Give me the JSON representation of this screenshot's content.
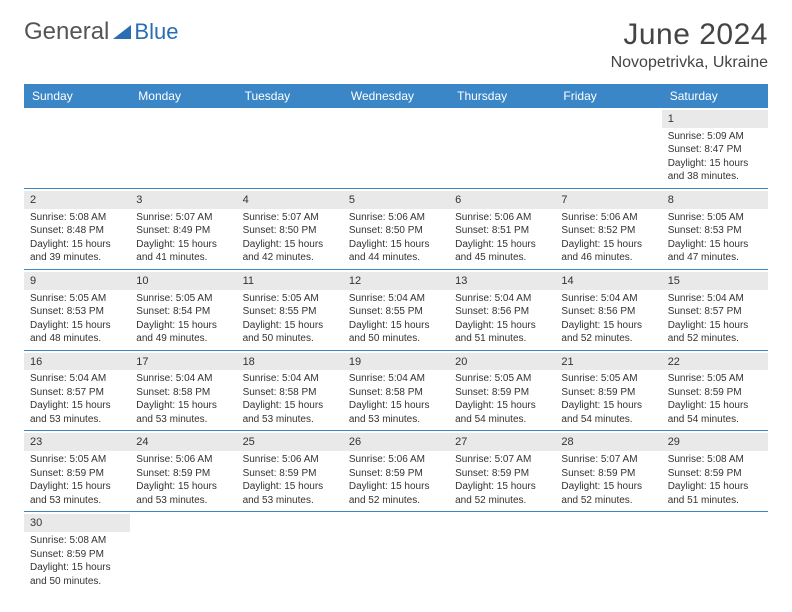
{
  "brand": {
    "general": "General",
    "blue": "Blue"
  },
  "title": "June 2024",
  "location": "Novopetrivka, Ukraine",
  "colors": {
    "header_bg": "#3b86c7",
    "header_fg": "#ffffff",
    "daynum_bg": "#e9e9e9",
    "border": "#3b86c7",
    "logo_blue": "#2a6db5",
    "text": "#333333",
    "bg": "#ffffff"
  },
  "daynames": [
    "Sunday",
    "Monday",
    "Tuesday",
    "Wednesday",
    "Thursday",
    "Friday",
    "Saturday"
  ],
  "weeks": [
    [
      null,
      null,
      null,
      null,
      null,
      null,
      {
        "n": "1",
        "sr": "Sunrise: 5:09 AM",
        "ss": "Sunset: 8:47 PM",
        "d1": "Daylight: 15 hours",
        "d2": "and 38 minutes."
      }
    ],
    [
      {
        "n": "2",
        "sr": "Sunrise: 5:08 AM",
        "ss": "Sunset: 8:48 PM",
        "d1": "Daylight: 15 hours",
        "d2": "and 39 minutes."
      },
      {
        "n": "3",
        "sr": "Sunrise: 5:07 AM",
        "ss": "Sunset: 8:49 PM",
        "d1": "Daylight: 15 hours",
        "d2": "and 41 minutes."
      },
      {
        "n": "4",
        "sr": "Sunrise: 5:07 AM",
        "ss": "Sunset: 8:50 PM",
        "d1": "Daylight: 15 hours",
        "d2": "and 42 minutes."
      },
      {
        "n": "5",
        "sr": "Sunrise: 5:06 AM",
        "ss": "Sunset: 8:50 PM",
        "d1": "Daylight: 15 hours",
        "d2": "and 44 minutes."
      },
      {
        "n": "6",
        "sr": "Sunrise: 5:06 AM",
        "ss": "Sunset: 8:51 PM",
        "d1": "Daylight: 15 hours",
        "d2": "and 45 minutes."
      },
      {
        "n": "7",
        "sr": "Sunrise: 5:06 AM",
        "ss": "Sunset: 8:52 PM",
        "d1": "Daylight: 15 hours",
        "d2": "and 46 minutes."
      },
      {
        "n": "8",
        "sr": "Sunrise: 5:05 AM",
        "ss": "Sunset: 8:53 PM",
        "d1": "Daylight: 15 hours",
        "d2": "and 47 minutes."
      }
    ],
    [
      {
        "n": "9",
        "sr": "Sunrise: 5:05 AM",
        "ss": "Sunset: 8:53 PM",
        "d1": "Daylight: 15 hours",
        "d2": "and 48 minutes."
      },
      {
        "n": "10",
        "sr": "Sunrise: 5:05 AM",
        "ss": "Sunset: 8:54 PM",
        "d1": "Daylight: 15 hours",
        "d2": "and 49 minutes."
      },
      {
        "n": "11",
        "sr": "Sunrise: 5:05 AM",
        "ss": "Sunset: 8:55 PM",
        "d1": "Daylight: 15 hours",
        "d2": "and 50 minutes."
      },
      {
        "n": "12",
        "sr": "Sunrise: 5:04 AM",
        "ss": "Sunset: 8:55 PM",
        "d1": "Daylight: 15 hours",
        "d2": "and 50 minutes."
      },
      {
        "n": "13",
        "sr": "Sunrise: 5:04 AM",
        "ss": "Sunset: 8:56 PM",
        "d1": "Daylight: 15 hours",
        "d2": "and 51 minutes."
      },
      {
        "n": "14",
        "sr": "Sunrise: 5:04 AM",
        "ss": "Sunset: 8:56 PM",
        "d1": "Daylight: 15 hours",
        "d2": "and 52 minutes."
      },
      {
        "n": "15",
        "sr": "Sunrise: 5:04 AM",
        "ss": "Sunset: 8:57 PM",
        "d1": "Daylight: 15 hours",
        "d2": "and 52 minutes."
      }
    ],
    [
      {
        "n": "16",
        "sr": "Sunrise: 5:04 AM",
        "ss": "Sunset: 8:57 PM",
        "d1": "Daylight: 15 hours",
        "d2": "and 53 minutes."
      },
      {
        "n": "17",
        "sr": "Sunrise: 5:04 AM",
        "ss": "Sunset: 8:58 PM",
        "d1": "Daylight: 15 hours",
        "d2": "and 53 minutes."
      },
      {
        "n": "18",
        "sr": "Sunrise: 5:04 AM",
        "ss": "Sunset: 8:58 PM",
        "d1": "Daylight: 15 hours",
        "d2": "and 53 minutes."
      },
      {
        "n": "19",
        "sr": "Sunrise: 5:04 AM",
        "ss": "Sunset: 8:58 PM",
        "d1": "Daylight: 15 hours",
        "d2": "and 53 minutes."
      },
      {
        "n": "20",
        "sr": "Sunrise: 5:05 AM",
        "ss": "Sunset: 8:59 PM",
        "d1": "Daylight: 15 hours",
        "d2": "and 54 minutes."
      },
      {
        "n": "21",
        "sr": "Sunrise: 5:05 AM",
        "ss": "Sunset: 8:59 PM",
        "d1": "Daylight: 15 hours",
        "d2": "and 54 minutes."
      },
      {
        "n": "22",
        "sr": "Sunrise: 5:05 AM",
        "ss": "Sunset: 8:59 PM",
        "d1": "Daylight: 15 hours",
        "d2": "and 54 minutes."
      }
    ],
    [
      {
        "n": "23",
        "sr": "Sunrise: 5:05 AM",
        "ss": "Sunset: 8:59 PM",
        "d1": "Daylight: 15 hours",
        "d2": "and 53 minutes."
      },
      {
        "n": "24",
        "sr": "Sunrise: 5:06 AM",
        "ss": "Sunset: 8:59 PM",
        "d1": "Daylight: 15 hours",
        "d2": "and 53 minutes."
      },
      {
        "n": "25",
        "sr": "Sunrise: 5:06 AM",
        "ss": "Sunset: 8:59 PM",
        "d1": "Daylight: 15 hours",
        "d2": "and 53 minutes."
      },
      {
        "n": "26",
        "sr": "Sunrise: 5:06 AM",
        "ss": "Sunset: 8:59 PM",
        "d1": "Daylight: 15 hours",
        "d2": "and 52 minutes."
      },
      {
        "n": "27",
        "sr": "Sunrise: 5:07 AM",
        "ss": "Sunset: 8:59 PM",
        "d1": "Daylight: 15 hours",
        "d2": "and 52 minutes."
      },
      {
        "n": "28",
        "sr": "Sunrise: 5:07 AM",
        "ss": "Sunset: 8:59 PM",
        "d1": "Daylight: 15 hours",
        "d2": "and 52 minutes."
      },
      {
        "n": "29",
        "sr": "Sunrise: 5:08 AM",
        "ss": "Sunset: 8:59 PM",
        "d1": "Daylight: 15 hours",
        "d2": "and 51 minutes."
      }
    ],
    [
      {
        "n": "30",
        "sr": "Sunrise: 5:08 AM",
        "ss": "Sunset: 8:59 PM",
        "d1": "Daylight: 15 hours",
        "d2": "and 50 minutes."
      },
      null,
      null,
      null,
      null,
      null,
      null
    ]
  ]
}
